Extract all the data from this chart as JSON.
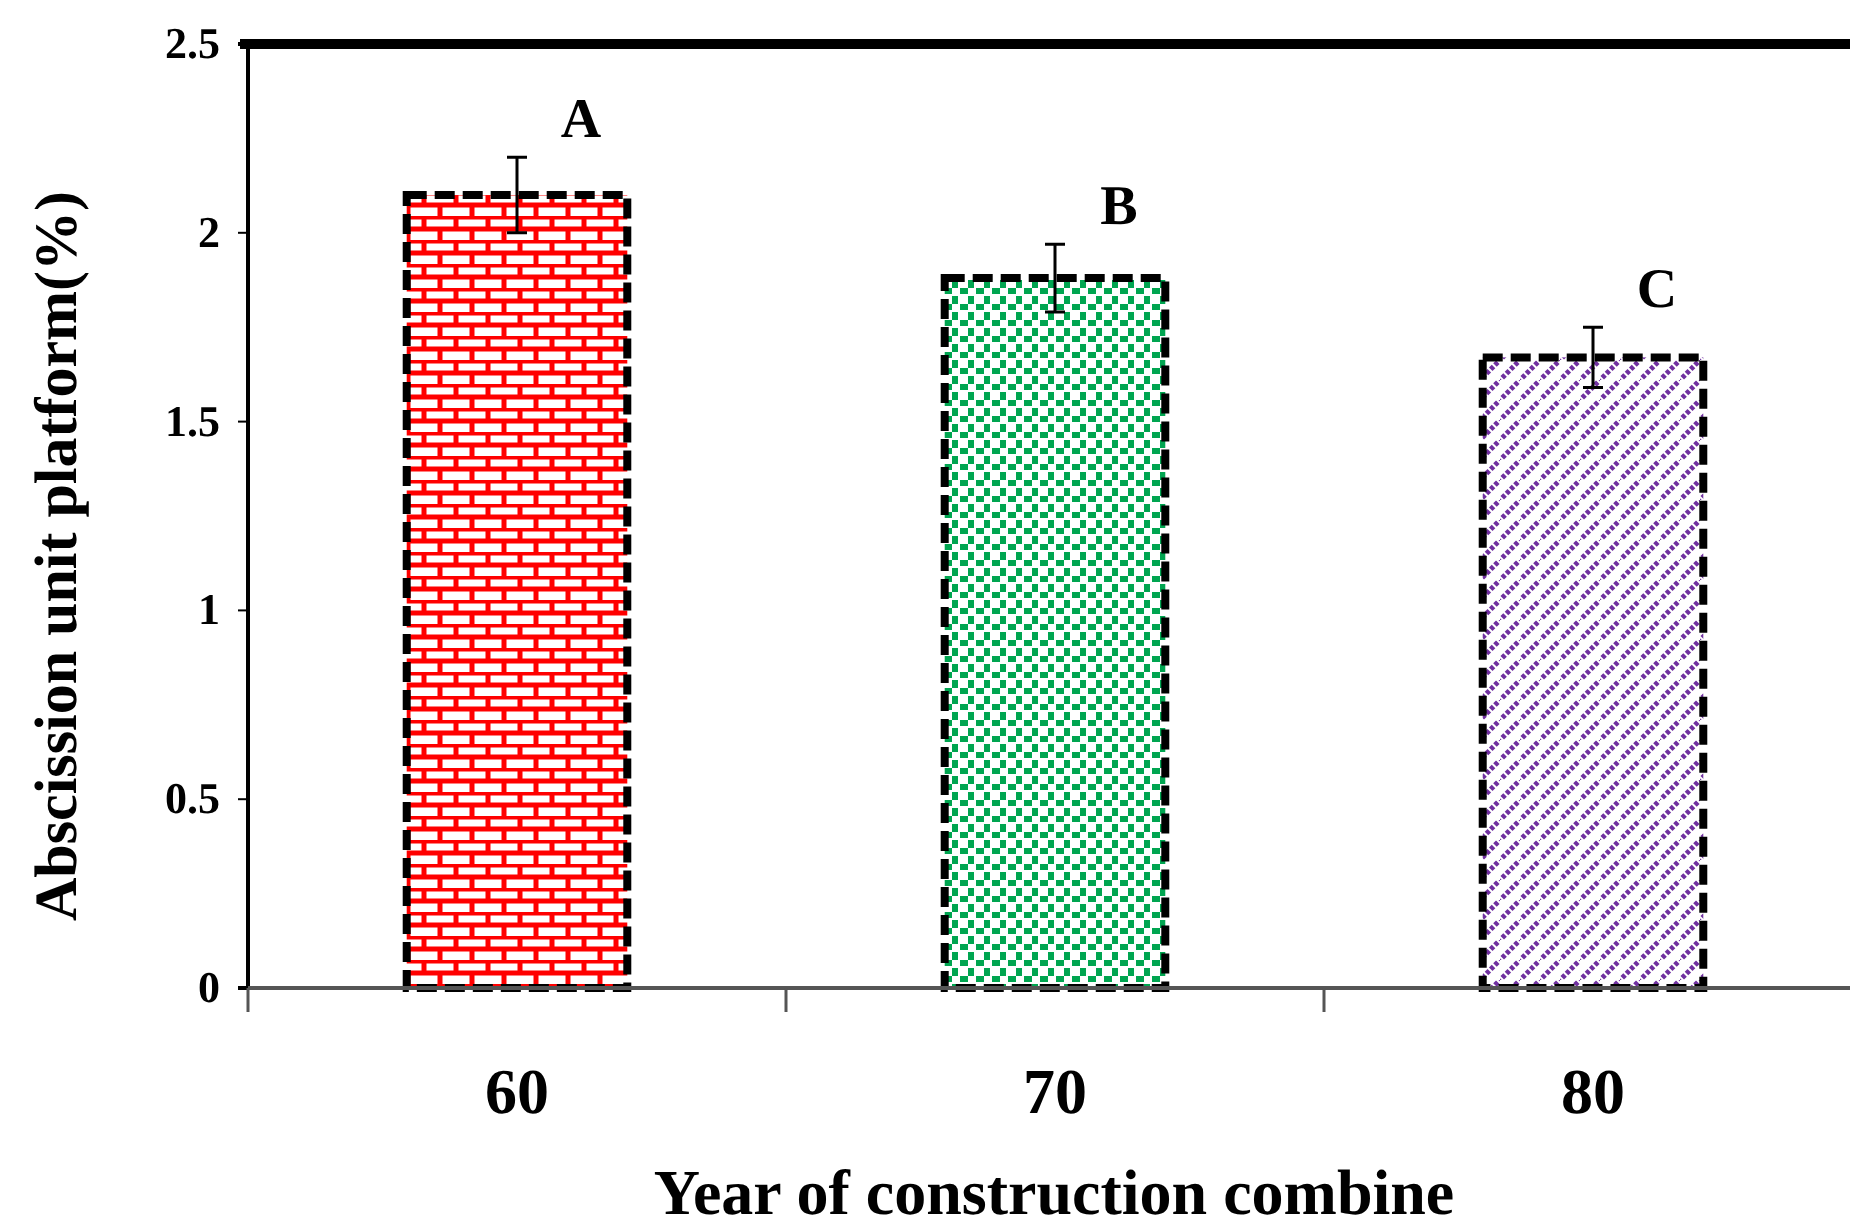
{
  "chart_data": {
    "type": "bar",
    "xlabel": "Year of construction combine",
    "ylabel": "Abscission unit platform(%)",
    "categories": [
      "60",
      "70",
      "80"
    ],
    "values": [
      2.1,
      1.88,
      1.67
    ],
    "errors": [
      0.1,
      0.09,
      0.08
    ],
    "colors": [
      "#ff0000",
      "#00a550",
      "#7030a0"
    ],
    "ylim": [
      0,
      2.5
    ],
    "yticks": [
      0,
      0.5,
      1,
      1.5,
      2,
      2.5
    ],
    "annotations": [
      "A",
      "B",
      "C"
    ],
    "grid": false
  }
}
